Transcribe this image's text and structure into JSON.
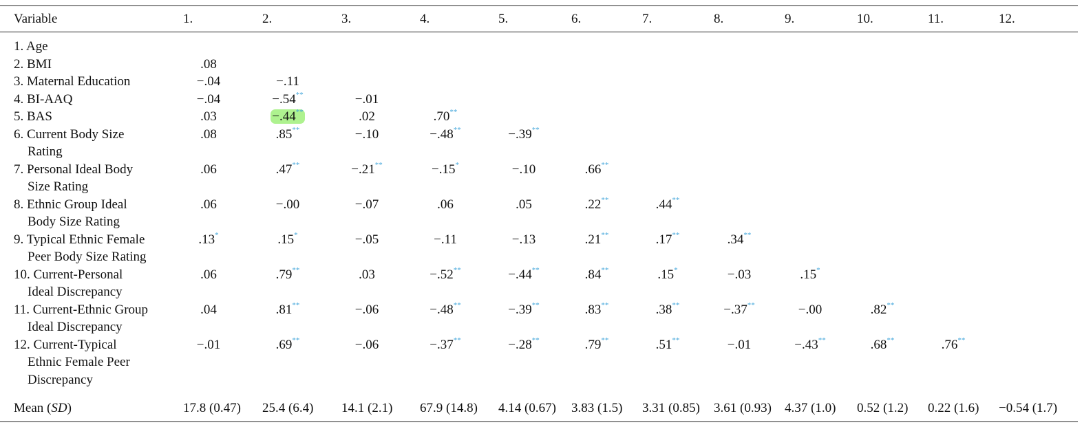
{
  "table": {
    "header": [
      "Variable",
      "1.",
      "2.",
      "3.",
      "4.",
      "5.",
      "6.",
      "7.",
      "8.",
      "9.",
      "10.",
      "11.",
      "12."
    ],
    "rows": [
      {
        "label": [
          "1. Age"
        ],
        "cells": []
      },
      {
        "label": [
          "2. BMI"
        ],
        "cells": [
          {
            "value": ".08"
          }
        ]
      },
      {
        "label": [
          "3. Maternal Education"
        ],
        "cells": [
          {
            "value": "−.04"
          },
          {
            "value": "−.11"
          }
        ]
      },
      {
        "label": [
          "4. BI-AAQ"
        ],
        "cells": [
          {
            "value": "−.04"
          },
          {
            "value": "−.54",
            "sig": "**"
          },
          {
            "value": "−.01"
          }
        ]
      },
      {
        "label": [
          "5. BAS"
        ],
        "cells": [
          {
            "value": ".03"
          },
          {
            "value": "−.44",
            "sig": "**",
            "highlight": true
          },
          {
            "value": ".02"
          },
          {
            "value": ".70",
            "sig": "**"
          }
        ]
      },
      {
        "label": [
          "6. Current Body Size",
          "Rating"
        ],
        "cells": [
          {
            "value": ".08"
          },
          {
            "value": ".85",
            "sig": "**"
          },
          {
            "value": "−.10"
          },
          {
            "value": "−.48",
            "sig": "**"
          },
          {
            "value": "−.39",
            "sig": "**"
          }
        ]
      },
      {
        "label": [
          "7. Personal Ideal Body",
          "Size Rating"
        ],
        "cells": [
          {
            "value": ".06"
          },
          {
            "value": ".47",
            "sig": "**"
          },
          {
            "value": "−.21",
            "sig": "**"
          },
          {
            "value": "−.15",
            "sig": "*"
          },
          {
            "value": "−.10"
          },
          {
            "value": ".66",
            "sig": "**"
          }
        ]
      },
      {
        "label": [
          "8. Ethnic Group Ideal",
          "Body Size Rating"
        ],
        "cells": [
          {
            "value": ".06"
          },
          {
            "value": "−.00"
          },
          {
            "value": "−.07"
          },
          {
            "value": ".06"
          },
          {
            "value": ".05"
          },
          {
            "value": ".22",
            "sig": "**"
          },
          {
            "value": ".44",
            "sig": "**"
          }
        ]
      },
      {
        "label": [
          "9. Typical Ethnic Female",
          "Peer Body Size Rating"
        ],
        "cells": [
          {
            "value": ".13",
            "sig": "*"
          },
          {
            "value": ".15",
            "sig": "*"
          },
          {
            "value": "−.05"
          },
          {
            "value": "−.11"
          },
          {
            "value": "−.13"
          },
          {
            "value": ".21",
            "sig": "**"
          },
          {
            "value": ".17",
            "sig": "**"
          },
          {
            "value": ".34",
            "sig": "**"
          }
        ]
      },
      {
        "label": [
          "10. Current-Personal",
          "Ideal Discrepancy"
        ],
        "cells": [
          {
            "value": ".06"
          },
          {
            "value": ".79",
            "sig": "**"
          },
          {
            "value": ".03"
          },
          {
            "value": "−.52",
            "sig": "**"
          },
          {
            "value": "−.44",
            "sig": "**"
          },
          {
            "value": ".84",
            "sig": "**"
          },
          {
            "value": ".15",
            "sig": "*"
          },
          {
            "value": "−.03"
          },
          {
            "value": ".15",
            "sig": "*"
          }
        ]
      },
      {
        "label": [
          "11. Current-Ethnic Group",
          "Ideal Discrepancy"
        ],
        "cells": [
          {
            "value": ".04"
          },
          {
            "value": ".81",
            "sig": "**"
          },
          {
            "value": "−.06"
          },
          {
            "value": "−.48",
            "sig": "**"
          },
          {
            "value": "−.39",
            "sig": "**"
          },
          {
            "value": ".83",
            "sig": "**"
          },
          {
            "value": ".38",
            "sig": "**"
          },
          {
            "value": "−.37",
            "sig": "**"
          },
          {
            "value": "−.00"
          },
          {
            "value": ".82",
            "sig": "**"
          }
        ]
      },
      {
        "label": [
          "12. Current-Typical",
          "Ethnic Female Peer",
          "Discrepancy"
        ],
        "cells": [
          {
            "value": "−.01"
          },
          {
            "value": ".69",
            "sig": "**"
          },
          {
            "value": "−.06"
          },
          {
            "value": "−.37",
            "sig": "**"
          },
          {
            "value": "−.28",
            "sig": "**"
          },
          {
            "value": ".79",
            "sig": "**"
          },
          {
            "value": ".51",
            "sig": "**"
          },
          {
            "value": "−.01"
          },
          {
            "value": "−.43",
            "sig": "**"
          },
          {
            "value": ".68",
            "sig": "**"
          },
          {
            "value": ".76",
            "sig": "**"
          }
        ]
      }
    ],
    "mean_row": {
      "label": [
        "Mean (",
        "SD",
        ")"
      ],
      "cells": [
        "17.8 (0.47)",
        "25.4 (6.4)",
        "14.1 (2.1)",
        "67.9 (14.8)",
        "4.14 (0.67)",
        "3.83 (1.5)",
        "3.31 (0.85)",
        "3.61 (0.93)",
        "4.37 (1.0)",
        "0.52 (1.2)",
        "0.22 (1.6)",
        "−0.54 (1.7)"
      ]
    }
  }
}
